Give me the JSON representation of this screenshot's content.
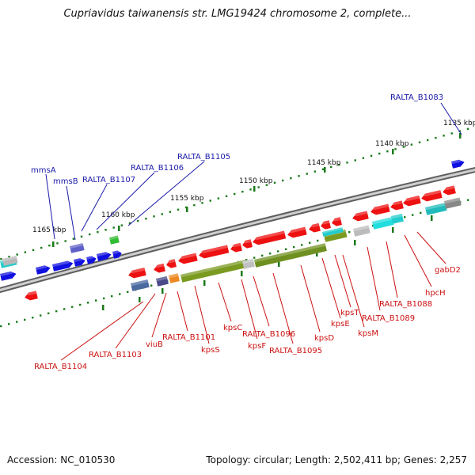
{
  "title": "Cupriavidus taiwanensis str. LMG19424 chromosome 2, complete...",
  "footer": {
    "accession": "Accession: NC_010530",
    "info": "Topology: circular; Length: 2,502,411 bp; Genes: 2,257"
  },
  "colors": {
    "forward_label": "#1a1aa8",
    "reverse_label": "#cc1111",
    "forward_gene": "#1010e0",
    "reverse_gene": "#ee1111",
    "backbone": "#777777",
    "ticks": "#1a7a1a"
  },
  "ticks": [
    {
      "label": "1135 kbp"
    },
    {
      "label": "1140 kbp"
    },
    {
      "label": "1145 kbp"
    },
    {
      "label": "1150 kbp"
    },
    {
      "label": "1155 kbp"
    },
    {
      "label": "1160 kbp"
    },
    {
      "label": "1165 kbp"
    }
  ],
  "forward_labels": [
    {
      "label": "RALTA_B1083"
    },
    {
      "label": "RALTA_B1105"
    },
    {
      "label": "RALTA_B1106"
    },
    {
      "label": "RALTA_B1107"
    },
    {
      "label": "mmsA"
    },
    {
      "label": "mmsB"
    }
  ],
  "reverse_labels": [
    {
      "label": "gabD2"
    },
    {
      "label": "hpcH"
    },
    {
      "label": "RALTA_B1088"
    },
    {
      "label": "RALTA_B1089"
    },
    {
      "label": "kpsT"
    },
    {
      "label": "kpsE"
    },
    {
      "label": "kpsM"
    },
    {
      "label": "kpsD"
    },
    {
      "label": "RALTA_B1095"
    },
    {
      "label": "RALTA_B1096"
    },
    {
      "label": "kpsF"
    },
    {
      "label": "kpsC"
    },
    {
      "label": "kpsS"
    },
    {
      "label": "RALTA_B1101"
    },
    {
      "label": "viuB"
    },
    {
      "label": "RALTA_B1103"
    },
    {
      "label": "RALTA_B1104"
    }
  ]
}
